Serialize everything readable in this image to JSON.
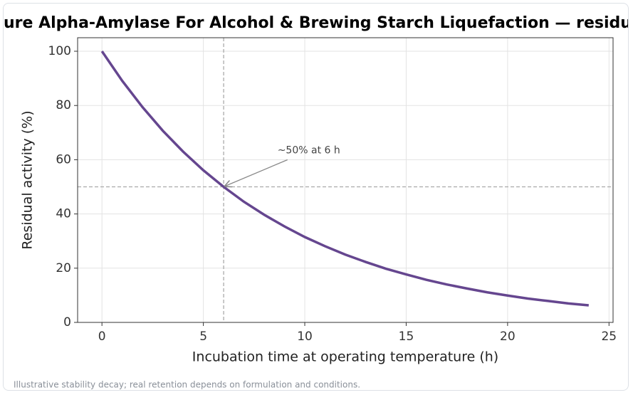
{
  "chart_data": {
    "type": "line",
    "title": "ure Alpha-Amylase For Alcohol & Brewing Starch Liquefaction — residu",
    "xlabel": "Incubation time at operating temperature (h)",
    "ylabel": "Residual activity (%)",
    "caption": "Illustrative stability decay; real retention depends on formulation and conditions.",
    "x": [
      0,
      1,
      2,
      3,
      4,
      5,
      6,
      7,
      8,
      9,
      10,
      11,
      12,
      13,
      14,
      15,
      16,
      17,
      18,
      19,
      20,
      21,
      22,
      23,
      24
    ],
    "series": [
      {
        "name": "Residual activity",
        "color": "#65468f",
        "values": [
          100,
          89.1,
          79.4,
          70.7,
          63.0,
          56.1,
          50.0,
          44.5,
          39.7,
          35.4,
          31.5,
          28.1,
          25.0,
          22.3,
          19.8,
          17.7,
          15.7,
          14.0,
          12.5,
          11.1,
          9.9,
          8.8,
          7.9,
          7.0,
          6.3
        ]
      }
    ],
    "xlim": [
      -1.2,
      25.2
    ],
    "xticks": [
      0,
      5,
      10,
      15,
      20,
      25
    ],
    "ylim": [
      0,
      105
    ],
    "yticks": [
      0,
      20,
      40,
      60,
      80,
      100
    ],
    "grid": true,
    "vline": 6,
    "hline": 50,
    "annotation": {
      "text": "~50% at 6 h",
      "x": 6,
      "y": 50,
      "xytext": [
        10.2,
        63.4
      ]
    }
  }
}
